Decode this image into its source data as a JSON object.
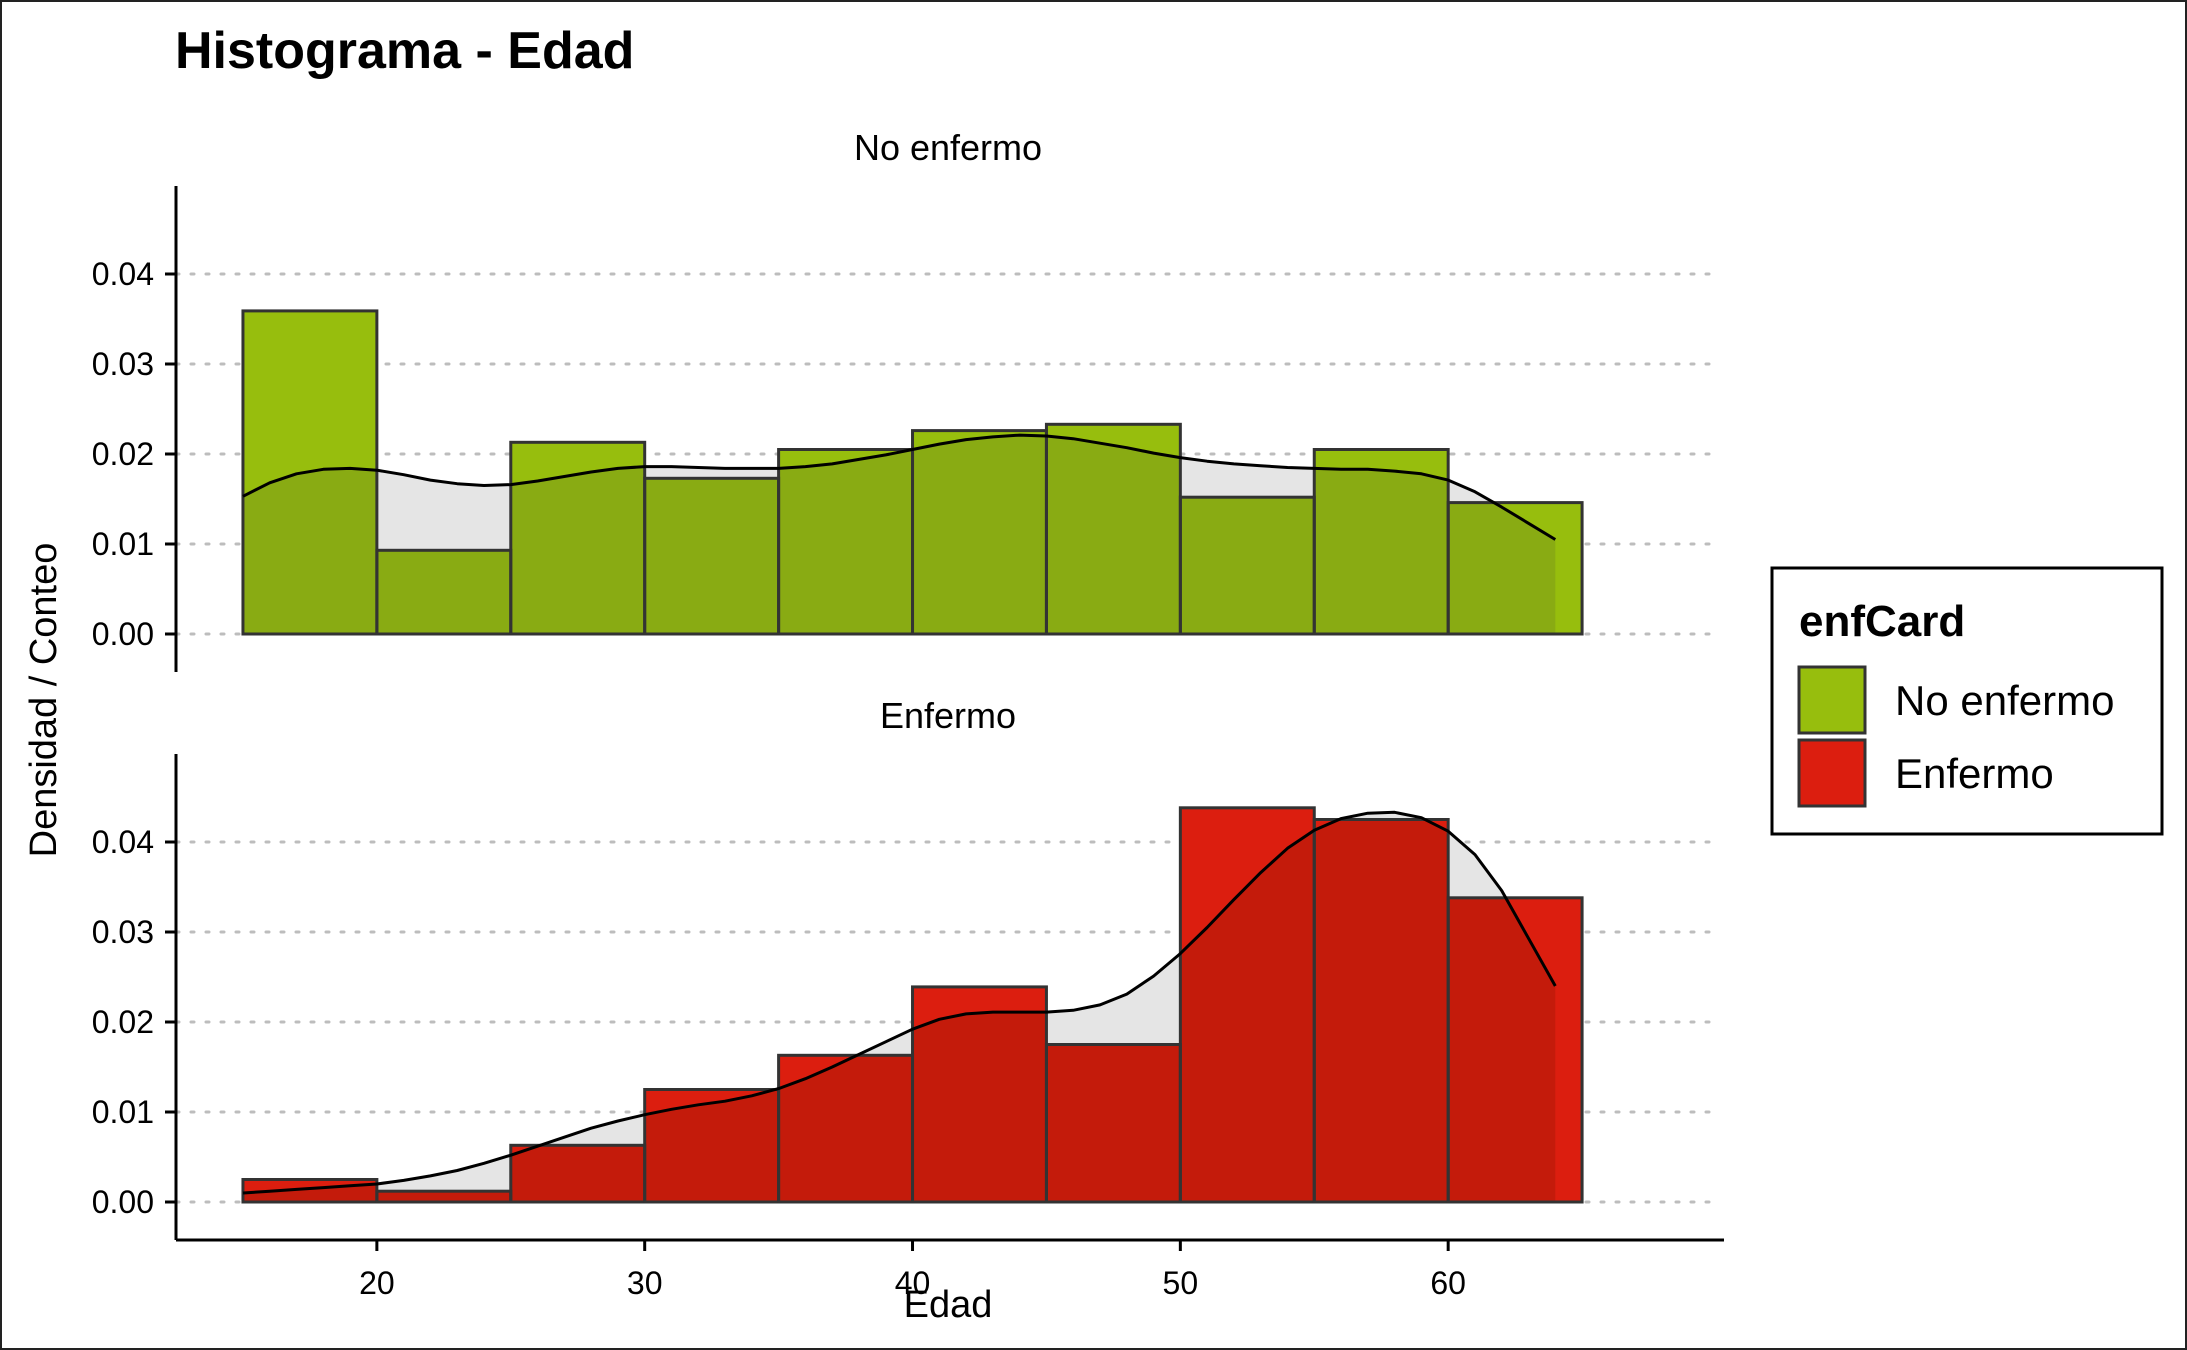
{
  "chart_data": {
    "type": "bar",
    "title": "Histograma - Edad",
    "xlabel": "Edad",
    "ylabel": "Densidad / Conteo",
    "xlim": [
      12.5,
      70
    ],
    "x_ticks": [
      20,
      30,
      40,
      50,
      60
    ],
    "ylim": [
      -0.002,
      0.046
    ],
    "y_ticks": [
      0.0,
      0.01,
      0.02,
      0.03,
      0.04
    ],
    "y_tick_labels": [
      "0.00",
      "0.01",
      "0.02",
      "0.03",
      "0.04"
    ],
    "grid": "horizontal dotted",
    "legend_position": "right",
    "legend": {
      "title": "enfCard",
      "entries": [
        {
          "label": "No enfermo",
          "color": "#97BE0D"
        },
        {
          "label": "Enfermo",
          "color": "#DC1E0F"
        }
      ]
    },
    "bin_edges": [
      15,
      20,
      25,
      30,
      35,
      40,
      45,
      50,
      55,
      60,
      65
    ],
    "colors": {
      "no_enfermo_fill": "#97BE0D",
      "no_enfermo_overlap": "#89AB13",
      "enfermo_fill": "#DC1E0F",
      "enfermo_overlap": "#C41B0B",
      "density_area": "#E5E5E5",
      "outline": "#333333"
    },
    "facets": [
      {
        "label": "No enfermo",
        "histogram_density": [
          0.0359,
          0.0093,
          0.0213,
          0.0173,
          0.0205,
          0.0226,
          0.0233,
          0.0152,
          0.0205,
          0.0146
        ],
        "density_curve": {
          "x": [
            15,
            16,
            17,
            18,
            19,
            20,
            21,
            22,
            23,
            24,
            25,
            26,
            27,
            28,
            29,
            30,
            31,
            32,
            33,
            34,
            35,
            36,
            37,
            38,
            39,
            40,
            41,
            42,
            43,
            44,
            45,
            46,
            47,
            48,
            49,
            50,
            51,
            52,
            53,
            54,
            55,
            56,
            57,
            58,
            59,
            60,
            61,
            62,
            63,
            64
          ],
          "y": [
            0.0153,
            0.0168,
            0.0178,
            0.0183,
            0.0184,
            0.0182,
            0.0177,
            0.0171,
            0.0167,
            0.0165,
            0.0166,
            0.017,
            0.0175,
            0.018,
            0.0184,
            0.0186,
            0.0186,
            0.0185,
            0.0184,
            0.0184,
            0.0184,
            0.0186,
            0.0189,
            0.0194,
            0.0199,
            0.0205,
            0.0211,
            0.0216,
            0.0219,
            0.0221,
            0.022,
            0.0217,
            0.0212,
            0.0207,
            0.0201,
            0.0196,
            0.0192,
            0.0189,
            0.0187,
            0.0185,
            0.0184,
            0.0183,
            0.0183,
            0.0181,
            0.0178,
            0.0171,
            0.0158,
            0.0141,
            0.0123,
            0.0105
          ]
        }
      },
      {
        "label": "Enfermo",
        "histogram_density": [
          0.0025,
          0.0012,
          0.0063,
          0.0125,
          0.0163,
          0.0239,
          0.0175,
          0.0438,
          0.0425,
          0.0338
        ],
        "density_curve": {
          "x": [
            15,
            16,
            17,
            18,
            19,
            20,
            21,
            22,
            23,
            24,
            25,
            26,
            27,
            28,
            29,
            30,
            31,
            32,
            33,
            34,
            35,
            36,
            37,
            38,
            39,
            40,
            41,
            42,
            43,
            44,
            45,
            46,
            47,
            48,
            49,
            50,
            51,
            52,
            53,
            54,
            55,
            56,
            57,
            58,
            59,
            60,
            61,
            62,
            63,
            64
          ],
          "y": [
            0.001,
            0.0012,
            0.0014,
            0.0016,
            0.0018,
            0.002,
            0.0024,
            0.0029,
            0.0035,
            0.0043,
            0.0052,
            0.0062,
            0.0072,
            0.0082,
            0.009,
            0.0097,
            0.0103,
            0.0108,
            0.0112,
            0.0118,
            0.0126,
            0.0137,
            0.015,
            0.0164,
            0.0178,
            0.0192,
            0.0203,
            0.0209,
            0.0211,
            0.0211,
            0.0211,
            0.0213,
            0.0219,
            0.0231,
            0.0251,
            0.0276,
            0.0305,
            0.0336,
            0.0366,
            0.0393,
            0.0413,
            0.0426,
            0.0432,
            0.0433,
            0.0427,
            0.0412,
            0.0386,
            0.0346,
            0.0293,
            0.024
          ]
        }
      }
    ]
  }
}
